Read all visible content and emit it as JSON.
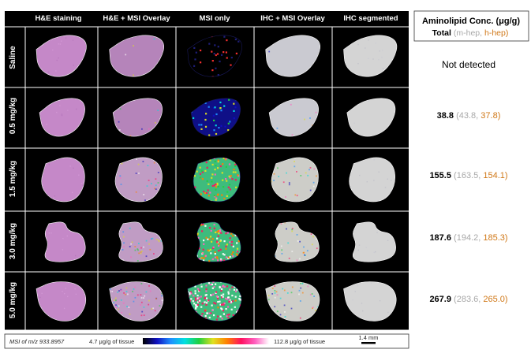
{
  "column_headers": [
    "H&E staining",
    "H&E + MSI Overlay",
    "MSI only",
    "IHC + MSI Overlay",
    "IHC segmented"
  ],
  "row_headers": [
    "Saline",
    "0.5 mg/kg",
    "1.5 mg/kg",
    "3.0 mg/kg",
    "5.0 mg/kg"
  ],
  "legend_box": {
    "title": "Aminolipid Conc. (μg/g)",
    "total_label": "Total",
    "paren_open": " (",
    "mhep_label": "m-hep",
    "sep": ", ",
    "hhep_label": "h-hep",
    "paren_close": ")"
  },
  "concentrations": [
    {
      "dose": "Saline",
      "text": "Not detected"
    },
    {
      "dose": "0.5 mg/kg",
      "total": "38.8",
      "mhep": "43.8",
      "hhep": "37.8"
    },
    {
      "dose": "1.5 mg/kg",
      "total": "155.5",
      "mhep": "163.5",
      "hhep": "154.1"
    },
    {
      "dose": "3.0 mg/kg",
      "total": "187.6",
      "mhep": "194.2",
      "hhep": "185.3"
    },
    {
      "dose": "5.0 mg/kg",
      "total": "267.9",
      "mhep": "283.6",
      "hhep": "265.0"
    }
  ],
  "colorbar": {
    "msi_label": "MSI of m/z 933.8957",
    "min_label": "4.7 μg/g of tissue",
    "max_label": "112.8 μg/g of tissue",
    "scale_label": "1.4 mm",
    "stops": [
      "#000000",
      "#1010c0",
      "#1e90ff",
      "#00e0e0",
      "#20d040",
      "#e0e020",
      "#ff8000",
      "#ff1060",
      "#ff60c0",
      "#ffffff"
    ]
  },
  "colors": {
    "panel_bg": "#000000",
    "he_tissue": "#c98bcc",
    "ihc_tissue": "#d9d9d9",
    "mhep": "#a8a8a8",
    "hhep": "#d07818",
    "total": "#000000"
  },
  "msi_intensity_by_dose": [
    0.05,
    0.18,
    0.55,
    0.75,
    0.95
  ]
}
